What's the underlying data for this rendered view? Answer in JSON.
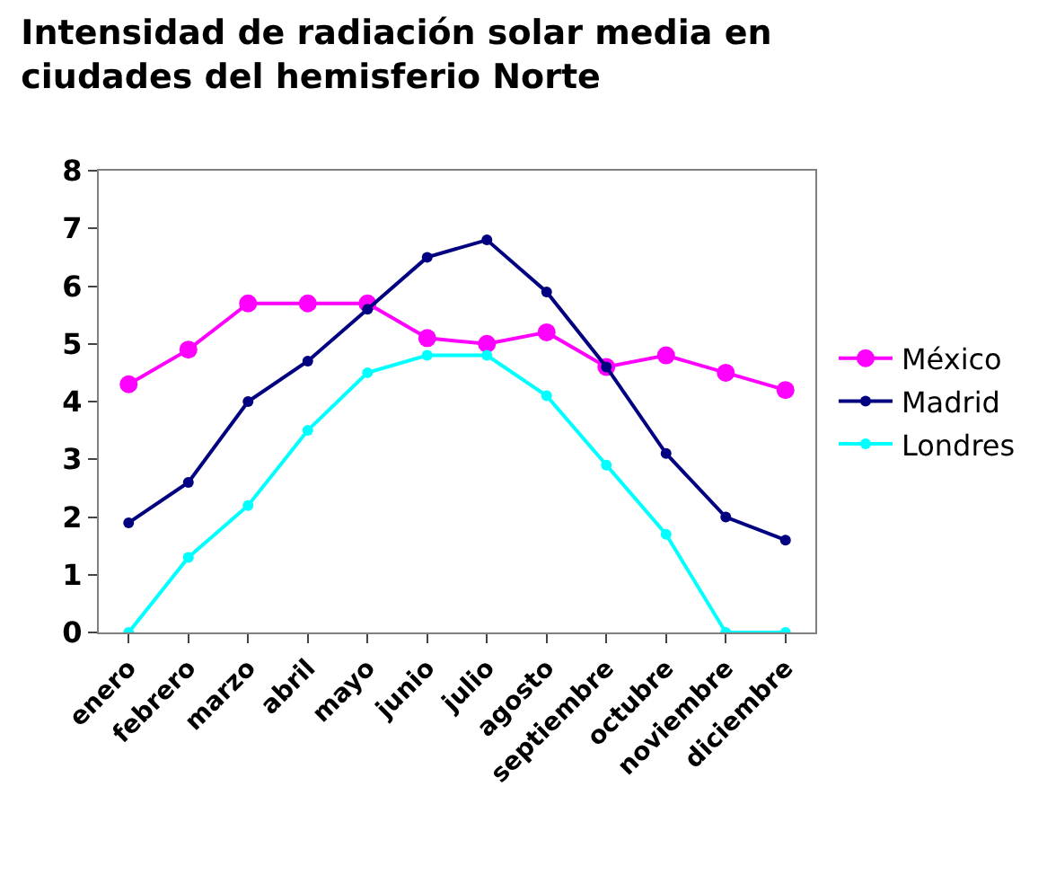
{
  "chart_data": {
    "type": "line",
    "title": "Intensidad de radiación solar media en\nciudades del hemisferio Norte",
    "categories": [
      "enero",
      "febrero",
      "marzo",
      "abril",
      "mayo",
      "junio",
      "julio",
      "agosto",
      "septiembre",
      "octubre",
      "noviembre",
      "diciembre"
    ],
    "series": [
      {
        "name": "México",
        "color": "#ff00ff",
        "values": [
          4.3,
          4.9,
          5.7,
          5.7,
          5.7,
          5.1,
          5.0,
          5.2,
          4.6,
          4.8,
          4.5,
          4.2
        ]
      },
      {
        "name": "Madrid",
        "color": "#000080",
        "values": [
          1.9,
          2.6,
          4.0,
          4.7,
          5.6,
          6.5,
          6.8,
          5.9,
          4.6,
          3.1,
          2.0,
          1.6
        ]
      },
      {
        "name": "Londres",
        "color": "#00ffff",
        "values": [
          0,
          1.3,
          2.2,
          3.5,
          4.5,
          4.8,
          4.8,
          4.1,
          2.9,
          1.7,
          0,
          0
        ]
      }
    ],
    "ylim": [
      0,
      8
    ],
    "yticks": [
      0,
      1,
      2,
      3,
      4,
      5,
      6,
      7,
      8
    ],
    "legend": "right",
    "marker": "circle",
    "line_style": "solid"
  }
}
